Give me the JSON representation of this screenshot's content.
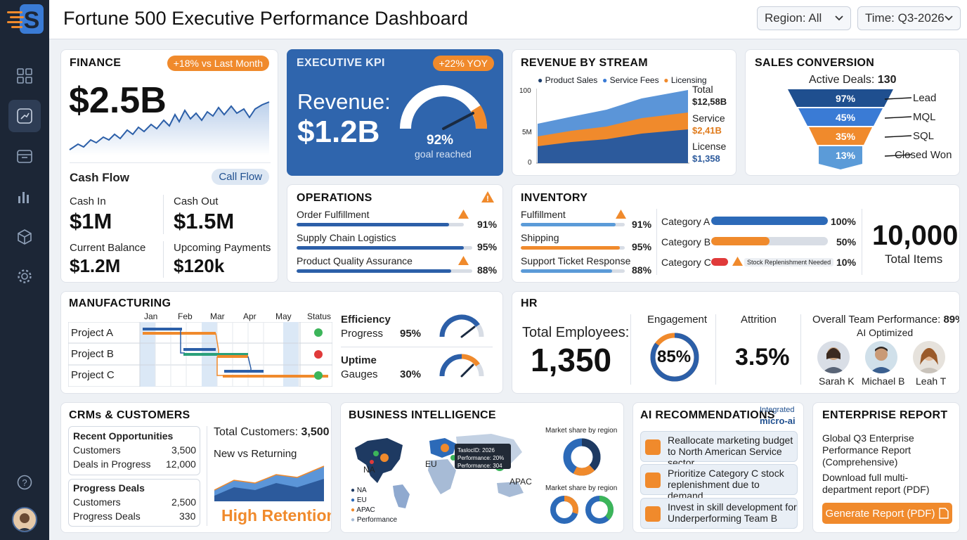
{
  "app": {
    "title": "Fortune 500 Executive Performance Dashboard"
  },
  "filters": {
    "region": "Region: All",
    "time": "Time: Q3-2026"
  },
  "sidebar": {
    "items": [
      "grid-icon",
      "analytics-icon",
      "calendar-icon",
      "bar-chart-icon",
      "cube-icon",
      "gear-icon"
    ],
    "help": "help-icon"
  },
  "finance": {
    "title": "FINANCE",
    "badge": "+18% vs Last Month",
    "value": "$2.5B",
    "cashflow_label": "Cash Flow",
    "cashflow_button": "Call Flow",
    "cash_in_label": "Cash In",
    "cash_in": "$1M",
    "cash_out_label": "Cash Out",
    "cash_out": "$1.5M",
    "balance_label": "Current Balance",
    "balance": "$1.2M",
    "upcoming_label": "Upcoming Payments",
    "upcoming": "$120k"
  },
  "kpi": {
    "title": "EXECUTIVE KPI",
    "badge": "+22% YOY",
    "label": "Revenue:",
    "value": "$1.2B",
    "gauge_pct": "92%",
    "gauge_value": 0.92,
    "gauge_label": "goal reached"
  },
  "revenue": {
    "title": "REVENUE BY STREAM",
    "legend": [
      "Product Sales",
      "Service Fees",
      "Licensing"
    ],
    "yticks": [
      "100",
      "5M",
      "0"
    ],
    "total_label": "Total",
    "total_value": "$12,58B",
    "service_label": "Service",
    "service_value": "$2,41B",
    "license_label": "License",
    "license_value": "$1,358"
  },
  "sales": {
    "title": "SALES CONVERSION",
    "active_label": "Active Deals:",
    "active_value": "130",
    "stages": [
      {
        "pct": "97%",
        "label": "Lead"
      },
      {
        "pct": "45%",
        "label": "MQL"
      },
      {
        "pct": "35%",
        "label": "SQL"
      },
      {
        "pct": "13%",
        "label": "Closed Won"
      }
    ]
  },
  "operations": {
    "title": "OPERATIONS",
    "items": [
      {
        "label": "Order Fulfillment",
        "pct": "91%",
        "value": 0.91
      },
      {
        "label": "Supply Chain Logistics",
        "pct": "95%",
        "value": 0.95
      },
      {
        "label": "Product Quality Assurance",
        "pct": "88%",
        "value": 0.88
      }
    ]
  },
  "inventory": {
    "title": "INVENTORY",
    "items": [
      {
        "label": "Fulfillment",
        "pct": "91%",
        "value": 0.91
      },
      {
        "label": "Shipping",
        "pct": "95%",
        "value": 0.95
      },
      {
        "label": "Support Ticket Response",
        "pct": "88%",
        "value": 0.88
      }
    ],
    "categories": [
      {
        "label": "Category A",
        "pct": "100%",
        "value": 1.0
      },
      {
        "label": "Category B",
        "pct": "50%",
        "value": 0.5
      },
      {
        "label": "Category C",
        "pct": "10%",
        "value": 0.1
      }
    ],
    "alert": "Stock Replenishment Needed",
    "total": "10,000",
    "total_label": "Total Items"
  },
  "manufacturing": {
    "title": "MANUFACTURING",
    "months": [
      "Jan",
      "Feb",
      "Mar",
      "Apr",
      "May"
    ],
    "status_label": "Status",
    "projects": [
      "Project A",
      "Project B",
      "Project C"
    ],
    "efficiency_title": "Efficiency",
    "efficiency_label": "Progress",
    "efficiency_pct": "95%",
    "efficiency_value": 0.95,
    "uptime_title": "Uptime",
    "uptime_label": "Gauges",
    "uptime_pct": "30%",
    "uptime_value": 0.3
  },
  "hr": {
    "title": "HR",
    "employees_label": "Total Employees:",
    "employees": "1,350",
    "engagement_label": "Engagement",
    "engagement": "85%",
    "engagement_value": 0.85,
    "attrition_label": "Attrition",
    "attrition": "3.5%",
    "team_label": "Overall Team Performance:",
    "team_value": "89%",
    "team_sub": "AI Optimized",
    "people": [
      "Sarah K",
      "Michael B",
      "Leah T"
    ]
  },
  "crm": {
    "title": "CRMs & CUSTOMERS",
    "opps_title": "Recent Opportunities",
    "opps": [
      {
        "label": "Customers",
        "value": "3,500"
      },
      {
        "label": "Deals in Progress",
        "value": "12,000"
      }
    ],
    "progress_title": "Progress Deals",
    "progress": [
      {
        "label": "Customers",
        "value": "2,500"
      },
      {
        "label": "Progress Deals",
        "value": "330"
      }
    ],
    "total_label": "Total Customers:",
    "total_value": "3,500",
    "nvr_label": "New vs Returning",
    "retention": "High Retention"
  },
  "bi": {
    "title": "BUSINESS INTELLIGENCE",
    "regions": [
      "NA",
      "EU",
      "APAC"
    ],
    "legend": [
      "NA",
      "EU",
      "APAC",
      "Performance"
    ],
    "tooltip": [
      "TaslocID: 2026",
      "Performance: 20%",
      "Performance: 304"
    ],
    "share_label_1": "Market share by region",
    "share_label_2": "Market share by region"
  },
  "ai": {
    "title": "AI RECOMMENDATIONS",
    "integrated": "Integrated",
    "micro": "micro-ai",
    "items": [
      "Reallocate marketing budget to North American Service sector.",
      "Prioritize Category C stock replenishment due to demand",
      "Invest in skill development for Underperforming Team B"
    ]
  },
  "report": {
    "title": "ENTERPRISE REPORT",
    "line1": "Global Q3 Enterprise Performance Report (Comprehensive)",
    "line2": "Download full multi-department report (PDF)",
    "button": "Generate Report (PDF)"
  }
}
